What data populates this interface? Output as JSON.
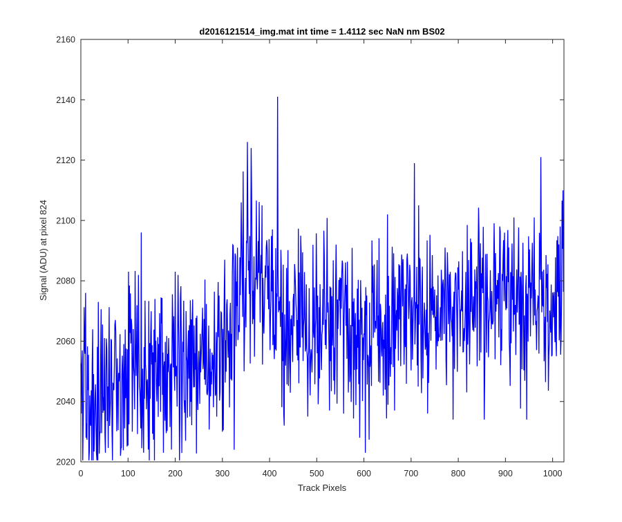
{
  "chart_data": {
    "type": "line",
    "title": "d2016121514_img.mat int time = 1.4112 sec  NaN nm BS02",
    "xlabel": "Track Pixels",
    "ylabel": "Signal (ADU) at pixel 824",
    "xlim": [
      0,
      1024
    ],
    "ylim": [
      2020,
      2160
    ],
    "xticks": [
      0,
      100,
      200,
      300,
      400,
      500,
      600,
      700,
      800,
      900,
      1000
    ],
    "yticks": [
      2020,
      2040,
      2060,
      2080,
      2100,
      2120,
      2140,
      2160
    ],
    "grid": false,
    "legend": "none",
    "line_color": "#0000ff",
    "series": [
      {
        "x": [
          0,
          13,
          26,
          39,
          52,
          65,
          78,
          91,
          104,
          117,
          130,
          143,
          156,
          169,
          182,
          195,
          208,
          221,
          234,
          247,
          260,
          273,
          286,
          299,
          312,
          325,
          338,
          351,
          364,
          377,
          390,
          403,
          416,
          429,
          442,
          455,
          468,
          481,
          494,
          507,
          520,
          533,
          546,
          559,
          572,
          585,
          598,
          611,
          624,
          637,
          650,
          663,
          676,
          689,
          702,
          715,
          728,
          741,
          754,
          767,
          780,
          793,
          806,
          819,
          832,
          845,
          858,
          871,
          884,
          897,
          910,
          923,
          936,
          949,
          962,
          975,
          988,
          1001,
          1014,
          1023
        ],
        "y": [
          2048,
          2052,
          2041,
          2040,
          2048,
          2051,
          2043,
          2044,
          2050,
          2051,
          2049,
          2047,
          2046,
          2050,
          2048,
          2054,
          2054,
          2048,
          2050,
          2049,
          2054,
          2051,
          2052,
          2055,
          2060,
          2072,
          2078,
          2082,
          2080,
          2078,
          2076,
          2074,
          2074,
          2069,
          2068,
          2066,
          2067,
          2061,
          2067,
          2063,
          2070,
          2065,
          2066,
          2065,
          2064,
          2063,
          2062,
          2065,
          2068,
          2066,
          2066,
          2067,
          2069,
          2068,
          2070,
          2067,
          2070,
          2070,
          2068,
          2071,
          2070,
          2069,
          2070,
          2072,
          2069,
          2071,
          2073,
          2071,
          2073,
          2070,
          2071,
          2074,
          2072,
          2073,
          2072,
          2075,
          2073,
          2075,
          2074,
          2078
        ],
        "amplitude": 14,
        "spikes": [
          {
            "x": 1,
            "y": 2036
          },
          {
            "x": 10,
            "y": 2076
          },
          {
            "x": 11,
            "y": 2028
          },
          {
            "x": 33,
            "y": 2023
          },
          {
            "x": 37,
            "y": 2073
          },
          {
            "x": 52,
            "y": 2023
          },
          {
            "x": 67,
            "y": 2020
          },
          {
            "x": 84,
            "y": 2022
          },
          {
            "x": 101,
            "y": 2083
          },
          {
            "x": 128,
            "y": 2096
          },
          {
            "x": 133,
            "y": 2023
          },
          {
            "x": 175,
            "y": 2023
          },
          {
            "x": 200,
            "y": 2083
          },
          {
            "x": 222,
            "y": 2027
          },
          {
            "x": 300,
            "y": 2030
          },
          {
            "x": 305,
            "y": 2087
          },
          {
            "x": 325,
            "y": 2024
          },
          {
            "x": 340,
            "y": 2106
          },
          {
            "x": 346,
            "y": 2050
          },
          {
            "x": 353,
            "y": 2126
          },
          {
            "x": 361,
            "y": 2124
          },
          {
            "x": 384,
            "y": 2105
          },
          {
            "x": 417,
            "y": 2141
          },
          {
            "x": 431,
            "y": 2032
          },
          {
            "x": 481,
            "y": 2035
          },
          {
            "x": 527,
            "y": 2037
          },
          {
            "x": 541,
            "y": 2092
          },
          {
            "x": 567,
            "y": 2043
          },
          {
            "x": 591,
            "y": 2028
          },
          {
            "x": 603,
            "y": 2023
          },
          {
            "x": 619,
            "y": 2085
          },
          {
            "x": 650,
            "y": 2102
          },
          {
            "x": 665,
            "y": 2037
          },
          {
            "x": 707,
            "y": 2119
          },
          {
            "x": 716,
            "y": 2105
          },
          {
            "x": 735,
            "y": 2036
          },
          {
            "x": 772,
            "y": 2091
          },
          {
            "x": 789,
            "y": 2034
          },
          {
            "x": 826,
            "y": 2094
          },
          {
            "x": 855,
            "y": 2034
          },
          {
            "x": 888,
            "y": 2098
          },
          {
            "x": 918,
            "y": 2101
          },
          {
            "x": 945,
            "y": 2034
          },
          {
            "x": 961,
            "y": 2101
          },
          {
            "x": 975,
            "y": 2121
          },
          {
            "x": 1008,
            "y": 2055
          },
          {
            "x": 1016,
            "y": 2098
          },
          {
            "x": 1022,
            "y": 2110
          }
        ]
      }
    ]
  }
}
